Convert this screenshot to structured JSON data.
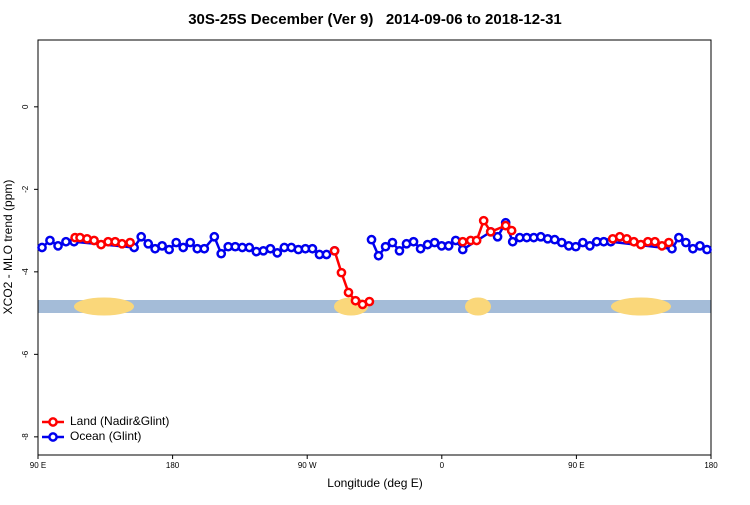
{
  "chart_data": {
    "type": "line",
    "title": "30S-25S December (Ver 9)   2014-09-06 to 2018-12-31",
    "x_label": "Longitude (deg E)",
    "y_label": "XCO2 - MLO trend (ppm)",
    "xlim": [
      90,
      540
    ],
    "ylim": [
      -8.44,
      1.62
    ],
    "xticks": [
      {
        "value": 90,
        "label": "90 E"
      },
      180,
      {
        "value": 270,
        "label": "90 W"
      },
      {
        "value": 360,
        "label": "0"
      },
      {
        "value": 450,
        "label": "90 E"
      },
      {
        "value": 540,
        "label": "180"
      }
    ],
    "yticks": [
      0,
      -2,
      -4,
      -6,
      -8
    ],
    "legend": "bottomleft",
    "series": [
      {
        "name": "Ocean (Glint)",
        "color": "#0000ee",
        "x": [
          92.7,
          98.0,
          103.4,
          108.7,
          114.1,
          154.3,
          159.0,
          163.7,
          168.3,
          173.0,
          177.7,
          182.4,
          187.1,
          191.8,
          196.5,
          201.2,
          207.9,
          212.5,
          217.2,
          221.9,
          226.6,
          231.3,
          236.0,
          240.7,
          245.4,
          250.0,
          254.7,
          259.4,
          264.1,
          268.8,
          273.5,
          278.2,
          282.9,
          288.3,
          null,
          313.0,
          317.7,
          322.4,
          327.0,
          331.7,
          336.4,
          341.1,
          345.8,
          350.5,
          355.2,
          359.9,
          364.6,
          369.3,
          374.0,
          392.7,
          397.3,
          402.7,
          407.4,
          412.1,
          416.8,
          421.5,
          426.2,
          430.8,
          435.5,
          440.2,
          444.9,
          449.6,
          454.3,
          459.0,
          463.6,
          468.3,
          473.0,
          513.9,
          518.5,
          523.2,
          527.9,
          532.6,
          537.3
        ],
        "values": [
          -3.41,
          -3.24,
          -3.37,
          -3.27,
          -3.27,
          -3.41,
          -3.15,
          -3.32,
          -3.44,
          -3.37,
          -3.46,
          -3.29,
          -3.41,
          -3.29,
          -3.44,
          -3.44,
          -3.15,
          -3.56,
          -3.39,
          -3.39,
          -3.41,
          -3.41,
          -3.51,
          -3.49,
          -3.44,
          -3.54,
          -3.41,
          -3.41,
          -3.46,
          -3.44,
          -3.44,
          -3.58,
          -3.58,
          -3.49,
          null,
          -3.22,
          -3.61,
          -3.39,
          -3.29,
          -3.49,
          -3.32,
          -3.27,
          -3.44,
          -3.34,
          -3.29,
          -3.37,
          -3.37,
          -3.24,
          -3.46,
          -3.03,
          -3.15,
          -2.81,
          -3.27,
          -3.17,
          -3.17,
          -3.17,
          -3.15,
          -3.2,
          -3.22,
          -3.29,
          -3.37,
          -3.39,
          -3.29,
          -3.37,
          -3.27,
          -3.27,
          -3.27,
          -3.44,
          -3.17,
          -3.29,
          -3.44,
          -3.37,
          -3.46
        ]
      },
      {
        "name": "Land (Nadir&Glint)",
        "color": "#ff0000",
        "x": [
          114.8,
          118.1,
          122.8,
          127.5,
          132.2,
          136.9,
          141.6,
          146.2,
          151.6,
          null,
          288.3,
          292.9,
          297.6,
          302.3,
          307.0,
          311.6,
          null,
          374.0,
          379.3,
          383.3,
          388.0,
          392.7,
          402.7,
          406.7,
          null,
          474.3,
          479.0,
          483.7,
          488.4,
          493.1,
          497.8,
          502.5,
          507.2,
          511.8
        ],
        "values": [
          -3.17,
          -3.17,
          -3.2,
          -3.24,
          -3.34,
          -3.27,
          -3.27,
          -3.32,
          -3.29,
          null,
          -3.49,
          -4.02,
          -4.5,
          -4.7,
          -4.79,
          -4.72,
          null,
          -3.27,
          -3.24,
          -3.24,
          -2.76,
          -3.03,
          -2.88,
          -3.0,
          null,
          -3.2,
          -3.15,
          -3.2,
          -3.27,
          -3.34,
          -3.27,
          -3.27,
          -3.37,
          -3.29
        ]
      }
    ]
  }
}
